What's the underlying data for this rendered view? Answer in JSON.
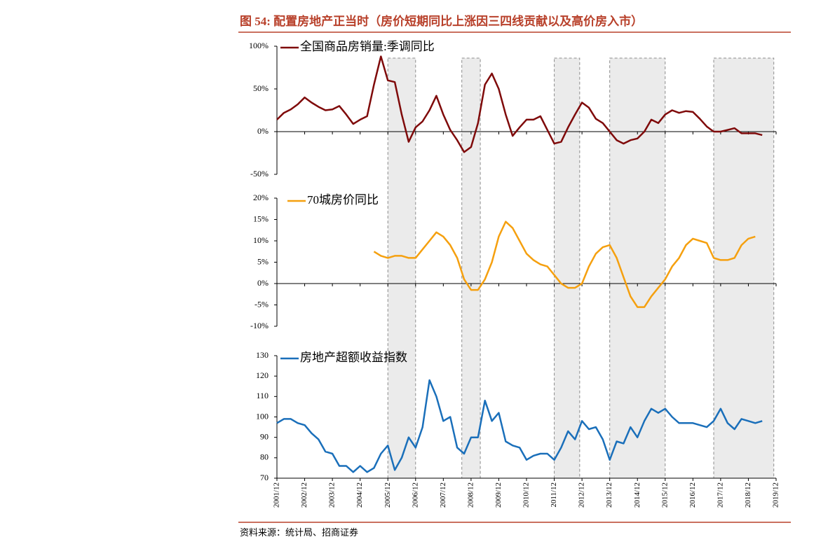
{
  "header": {
    "title": "图 54:  配置房地产正当时（房价短期同比上涨因三四线贡献以及高价房入市）"
  },
  "source": "资料来源：统计局、招商证券",
  "shaded": [
    {
      "start": "2005/12",
      "end": "2006/12"
    },
    {
      "start": "2008/08",
      "end": "2009/04"
    },
    {
      "start": "2011/12",
      "end": "2012/11"
    },
    {
      "start": "2013/12",
      "end": "2015/12"
    },
    {
      "start": "2017/09",
      "end": "2019/11"
    }
  ],
  "chart_data": [
    {
      "type": "line",
      "ylim": [
        -50,
        100
      ],
      "yticks": [
        {
          "value": 100,
          "label": "100%"
        },
        {
          "value": 50,
          "label": "50%"
        },
        {
          "value": 0,
          "label": "0%"
        },
        {
          "value": -50,
          "label": "-50%"
        }
      ],
      "x": [
        "2001/12",
        "2002/03",
        "2002/06",
        "2002/09",
        "2002/12",
        "2003/03",
        "2003/06",
        "2003/09",
        "2003/12",
        "2004/03",
        "2004/06",
        "2004/09",
        "2004/12",
        "2005/03",
        "2005/06",
        "2005/09",
        "2005/12",
        "2006/03",
        "2006/06",
        "2006/09",
        "2006/12",
        "2007/03",
        "2007/06",
        "2007/09",
        "2007/12",
        "2008/03",
        "2008/06",
        "2008/09",
        "2008/12",
        "2009/03",
        "2009/06",
        "2009/09",
        "2009/12",
        "2010/03",
        "2010/06",
        "2010/09",
        "2010/12",
        "2011/03",
        "2011/06",
        "2011/09",
        "2011/12",
        "2012/03",
        "2012/06",
        "2012/09",
        "2012/12",
        "2013/03",
        "2013/06",
        "2013/09",
        "2013/12",
        "2014/03",
        "2014/06",
        "2014/09",
        "2014/12",
        "2015/03",
        "2015/06",
        "2015/09",
        "2015/12",
        "2016/03",
        "2016/06",
        "2016/09",
        "2016/12",
        "2017/03",
        "2017/06",
        "2017/09",
        "2017/12",
        "2018/03",
        "2018/06",
        "2018/09",
        "2018/12",
        "2019/03",
        "2019/06"
      ],
      "series": [
        {
          "name": "全国商品房销量:季调同比",
          "color": "#7f0a0a",
          "values": [
            14,
            22,
            26,
            32,
            40,
            34,
            29,
            25,
            26,
            30,
            20,
            9,
            14,
            18,
            55,
            88,
            60,
            58,
            20,
            -12,
            5,
            12,
            25,
            42,
            20,
            2,
            -10,
            -24,
            -18,
            10,
            55,
            68,
            50,
            20,
            -5,
            5,
            14,
            14,
            18,
            2,
            -14,
            -12,
            5,
            20,
            34,
            28,
            15,
            10,
            0,
            -10,
            -14,
            -10,
            -8,
            0,
            14,
            10,
            20,
            25,
            22,
            24,
            23,
            15,
            6,
            0,
            0,
            2,
            4,
            -2,
            -2,
            -2,
            -4
          ]
        }
      ]
    },
    {
      "type": "line",
      "ylim": [
        -10,
        20
      ],
      "yticks": [
        {
          "value": 20,
          "label": "20%"
        },
        {
          "value": 15,
          "label": "15%"
        },
        {
          "value": 10,
          "label": "10%"
        },
        {
          "value": 5,
          "label": "5%"
        },
        {
          "value": 0,
          "label": "0%"
        },
        {
          "value": -5,
          "label": "-5%"
        },
        {
          "value": -10,
          "label": "-10%"
        }
      ],
      "x": [
        "2001/12",
        "2002/03",
        "2002/06",
        "2002/09",
        "2002/12",
        "2003/03",
        "2003/06",
        "2003/09",
        "2003/12",
        "2004/03",
        "2004/06",
        "2004/09",
        "2004/12",
        "2005/03",
        "2005/06",
        "2005/09",
        "2005/12",
        "2006/03",
        "2006/06",
        "2006/09",
        "2006/12",
        "2007/03",
        "2007/06",
        "2007/09",
        "2007/12",
        "2008/03",
        "2008/06",
        "2008/09",
        "2008/12",
        "2009/03",
        "2009/06",
        "2009/09",
        "2009/12",
        "2010/03",
        "2010/06",
        "2010/09",
        "2010/12",
        "2011/03",
        "2011/06",
        "2011/09",
        "2011/12",
        "2012/03",
        "2012/06",
        "2012/09",
        "2012/12",
        "2013/03",
        "2013/06",
        "2013/09",
        "2013/12",
        "2014/03",
        "2014/06",
        "2014/09",
        "2014/12",
        "2015/03",
        "2015/06",
        "2015/09",
        "2015/12",
        "2016/03",
        "2016/06",
        "2016/09",
        "2016/12",
        "2017/03",
        "2017/06",
        "2017/09",
        "2017/12",
        "2018/03",
        "2018/06",
        "2018/09",
        "2018/12",
        "2019/03",
        "2019/06"
      ],
      "series": [
        {
          "name": "70城房价同比",
          "color": "#f5a00f",
          "values": [
            null,
            null,
            null,
            null,
            null,
            null,
            null,
            null,
            null,
            null,
            null,
            null,
            null,
            null,
            7.5,
            6.5,
            6,
            6.5,
            6.5,
            6,
            6,
            8,
            10,
            12,
            11,
            9,
            6,
            1,
            -1.5,
            -1.5,
            1,
            5,
            11,
            14.5,
            13,
            10,
            7,
            5.5,
            4.5,
            4,
            2,
            0,
            -1,
            -1,
            0,
            4,
            7,
            8.5,
            9,
            6,
            1.5,
            -3,
            -5.5,
            -5.5,
            -3,
            -1,
            1,
            4,
            6,
            9,
            10.5,
            10,
            9.5,
            6,
            5.5,
            5.5,
            6,
            9,
            10.5,
            11,
            null
          ]
        }
      ]
    },
    {
      "type": "line",
      "ylim": [
        70,
        130
      ],
      "yticks": [
        130,
        120,
        110,
        100,
        90,
        80,
        70
      ],
      "xticks": [
        "2001/12",
        "2002/12",
        "2003/12",
        "2004/12",
        "2005/12",
        "2006/12",
        "2007/12",
        "2008/12",
        "2009/12",
        "2010/12",
        "2011/12",
        "2012/12",
        "2013/12",
        "2014/12",
        "2015/12",
        "2016/12",
        "2017/12",
        "2018/12",
        "2019/12"
      ],
      "x": [
        "2001/12",
        "2002/03",
        "2002/06",
        "2002/09",
        "2002/12",
        "2003/03",
        "2003/06",
        "2003/09",
        "2003/12",
        "2004/03",
        "2004/06",
        "2004/09",
        "2004/12",
        "2005/03",
        "2005/06",
        "2005/09",
        "2005/12",
        "2006/03",
        "2006/06",
        "2006/09",
        "2006/12",
        "2007/03",
        "2007/06",
        "2007/09",
        "2007/12",
        "2008/03",
        "2008/06",
        "2008/09",
        "2008/12",
        "2009/03",
        "2009/06",
        "2009/09",
        "2009/12",
        "2010/03",
        "2010/06",
        "2010/09",
        "2010/12",
        "2011/03",
        "2011/06",
        "2011/09",
        "2011/12",
        "2012/03",
        "2012/06",
        "2012/09",
        "2012/12",
        "2013/03",
        "2013/06",
        "2013/09",
        "2013/12",
        "2014/03",
        "2014/06",
        "2014/09",
        "2014/12",
        "2015/03",
        "2015/06",
        "2015/09",
        "2015/12",
        "2016/03",
        "2016/06",
        "2016/09",
        "2016/12",
        "2017/03",
        "2017/06",
        "2017/09",
        "2017/12",
        "2018/03",
        "2018/06",
        "2018/09",
        "2018/12",
        "2019/03",
        "2019/06"
      ],
      "series": [
        {
          "name": "房地产超额收益指数",
          "color": "#1a6fba",
          "values": [
            97,
            99,
            99,
            97,
            96,
            92,
            89,
            83,
            82,
            76,
            76,
            73,
            76,
            73,
            75,
            82,
            86,
            74,
            80,
            90,
            85,
            95,
            118,
            110,
            98,
            100,
            85,
            82,
            90,
            90,
            108,
            98,
            102,
            88,
            86,
            85,
            79,
            81,
            82,
            82,
            79,
            85,
            93,
            89,
            98,
            94,
            95,
            89,
            79,
            88,
            87,
            95,
            90,
            98,
            104,
            102,
            104,
            100,
            97,
            97,
            97,
            96,
            95,
            98,
            104,
            97,
            94,
            99,
            98,
            97,
            98
          ]
        }
      ]
    }
  ]
}
